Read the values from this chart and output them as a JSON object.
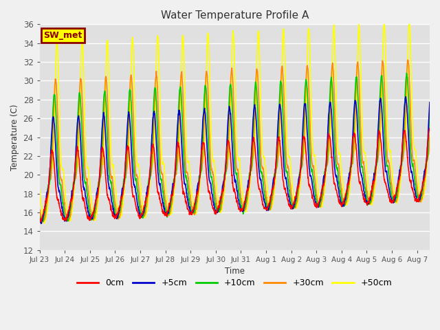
{
  "title": "Water Temperature Profile A",
  "xlabel": "Time",
  "ylabel": "Temperature (C)",
  "ylim": [
    12,
    36
  ],
  "yticks": [
    12,
    14,
    16,
    18,
    20,
    22,
    24,
    26,
    28,
    30,
    32,
    34,
    36
  ],
  "bg_color": "#e0e0e0",
  "fig_color": "#f0f0f0",
  "grid_color": "#ffffff",
  "annotation_text": "SW_met",
  "annotation_bg": "#ffff00",
  "annotation_border": "#8b0000",
  "annotation_text_color": "#8b0000",
  "legend_entries": [
    "0cm",
    "+5cm",
    "+10cm",
    "+30cm",
    "+50cm"
  ],
  "line_colors": [
    "#ff0000",
    "#0000cc",
    "#00cc00",
    "#ff8800",
    "#ffff00"
  ],
  "num_days": 15.5,
  "samples_per_day": 96
}
